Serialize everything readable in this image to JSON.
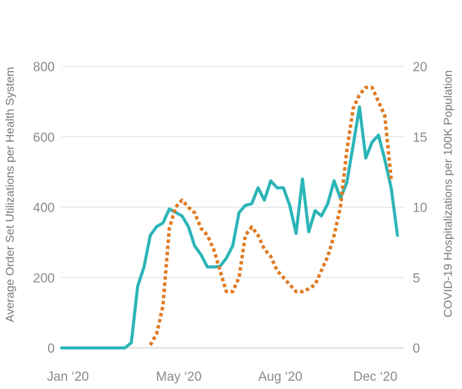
{
  "chart_data": {
    "type": "line",
    "title": "",
    "y_left_label": "Average Order Set Utilizations per Health System",
    "y_right_label": "COVID-19 Hospitalizations per 100K Population",
    "y_left_lim": [
      0,
      800
    ],
    "y_right_lim": [
      0,
      20
    ],
    "y_left_ticks": [
      "0",
      "200",
      "400",
      "600",
      "800"
    ],
    "y_right_ticks": [
      "0",
      "5",
      "10",
      "15",
      "20"
    ],
    "x_ticks": [
      {
        "label": "Jan ‘20",
        "week": 1
      },
      {
        "label": "May ‘20",
        "week": 18.5
      },
      {
        "label": "Aug ‘20",
        "week": 34.5
      },
      {
        "label": "Dec ‘20",
        "week": 49.5
      }
    ],
    "x_lim": [
      0,
      54
    ],
    "grid": true,
    "colors": {
      "utilization": "#2bb5b8",
      "hospitalizations": "#e07b24"
    },
    "series": [
      {
        "axis": "left",
        "style": "solid",
        "points": [
          [
            0,
            0
          ],
          [
            1,
            0
          ],
          [
            2,
            0
          ],
          [
            3,
            0
          ],
          [
            4,
            0
          ],
          [
            5,
            0
          ],
          [
            6,
            0
          ],
          [
            7,
            0
          ],
          [
            8,
            0
          ],
          [
            9,
            0
          ],
          [
            10,
            0
          ],
          [
            11,
            15
          ],
          [
            12,
            175
          ],
          [
            13,
            230
          ],
          [
            14,
            320
          ],
          [
            15,
            345
          ],
          [
            16,
            355
          ],
          [
            17,
            395
          ],
          [
            18,
            385
          ],
          [
            19,
            375
          ],
          [
            20,
            345
          ],
          [
            21,
            290
          ],
          [
            22,
            265
          ],
          [
            23,
            230
          ],
          [
            24,
            230
          ],
          [
            25,
            232
          ],
          [
            26,
            255
          ],
          [
            27,
            290
          ],
          [
            28,
            385
          ],
          [
            29,
            405
          ],
          [
            30,
            410
          ],
          [
            31,
            455
          ],
          [
            32,
            420
          ],
          [
            33,
            475
          ],
          [
            34,
            455
          ],
          [
            35,
            455
          ],
          [
            36,
            405
          ],
          [
            37,
            325
          ],
          [
            38,
            480
          ],
          [
            39,
            330
          ],
          [
            40,
            390
          ],
          [
            41,
            375
          ],
          [
            42,
            410
          ],
          [
            43,
            475
          ],
          [
            44,
            425
          ],
          [
            45,
            470
          ],
          [
            46,
            575
          ],
          [
            47,
            685
          ],
          [
            48,
            540
          ],
          [
            49,
            585
          ],
          [
            50,
            605
          ],
          [
            51,
            535
          ],
          [
            52,
            455
          ],
          [
            53,
            320
          ]
        ]
      },
      {
        "axis": "right",
        "style": "dotted",
        "points": [
          [
            14,
            0.2
          ],
          [
            15,
            1.0
          ],
          [
            16,
            3.0
          ],
          [
            17,
            8.5
          ],
          [
            18,
            10.0
          ],
          [
            19,
            10.5
          ],
          [
            20,
            10.0
          ],
          [
            21,
            9.6
          ],
          [
            22,
            8.5
          ],
          [
            23,
            8.0
          ],
          [
            24,
            7.0
          ],
          [
            25,
            5.5
          ],
          [
            26,
            4.0
          ],
          [
            27,
            4.0
          ],
          [
            28,
            5.0
          ],
          [
            29,
            8.0
          ],
          [
            30,
            8.6
          ],
          [
            31,
            8.0
          ],
          [
            32,
            7.0
          ],
          [
            33,
            6.5
          ],
          [
            34,
            5.5
          ],
          [
            35,
            5.0
          ],
          [
            36,
            4.5
          ],
          [
            37,
            4.0
          ],
          [
            38,
            4.0
          ],
          [
            39,
            4.2
          ],
          [
            40,
            4.5
          ],
          [
            41,
            5.5
          ],
          [
            42,
            6.5
          ],
          [
            43,
            8.0
          ],
          [
            44,
            10.0
          ],
          [
            45,
            14.0
          ],
          [
            46,
            17.0
          ],
          [
            47,
            18.0
          ],
          [
            48,
            18.5
          ],
          [
            49,
            18.5
          ],
          [
            50,
            17.5
          ],
          [
            51,
            16.5
          ],
          [
            52,
            12.0
          ]
        ]
      }
    ]
  }
}
